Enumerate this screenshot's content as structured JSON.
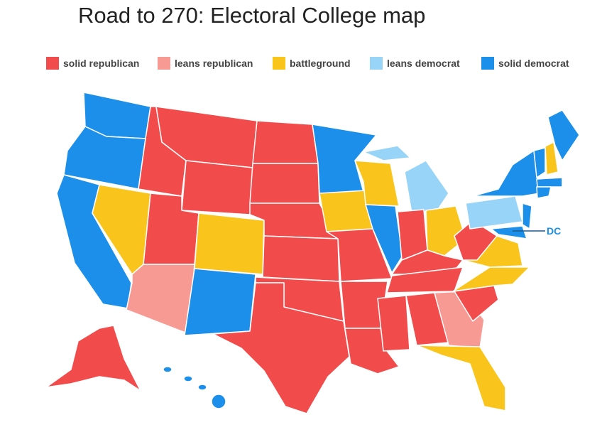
{
  "title": "Road to 270: Electoral College map",
  "legend": {
    "items": [
      {
        "label": "solid republican",
        "color": "#f24b4b"
      },
      {
        "label": "leans republican",
        "color": "#f89a94"
      },
      {
        "label": "battleground",
        "color": "#f9c41c"
      },
      {
        "label": "leans democrat",
        "color": "#98d4f7"
      },
      {
        "label": "solid democrat",
        "color": "#1b8fea"
      }
    ]
  },
  "annotation": {
    "label": "DC"
  }
}
